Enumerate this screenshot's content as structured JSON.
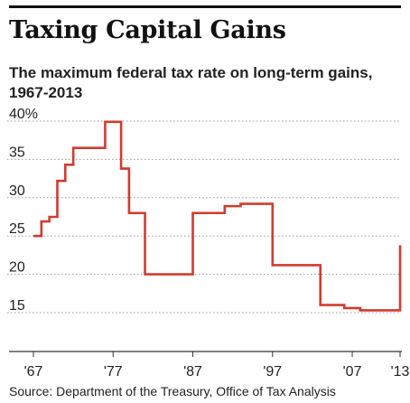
{
  "title": "Taxing Capital Gains",
  "subtitle": "The maximum federal tax rate on long-term gains, 1967-2013",
  "source": "Source: Department of the Treasury, Office of Tax Analysis",
  "colors": {
    "line": "#d13b30",
    "grid": "#9a9a9a",
    "text": "#222222",
    "rule": "#111111"
  },
  "chart_data": {
    "type": "line",
    "step": true,
    "xlim": [
      1967,
      2013
    ],
    "ylim": [
      15,
      40
    ],
    "grid": true,
    "y_ticks": [
      {
        "value": 40,
        "label": "40%"
      },
      {
        "value": 35,
        "label": "35"
      },
      {
        "value": 30,
        "label": "30"
      },
      {
        "value": 25,
        "label": "25"
      },
      {
        "value": 20,
        "label": "20"
      },
      {
        "value": 15,
        "label": "15"
      }
    ],
    "x_ticks": [
      {
        "value": 1967,
        "label": "'67"
      },
      {
        "value": 1977,
        "label": "'77"
      },
      {
        "value": 1987,
        "label": "'87"
      },
      {
        "value": 1997,
        "label": "'97"
      },
      {
        "value": 2007,
        "label": "'07"
      },
      {
        "value": 2013,
        "label": "'13"
      }
    ],
    "series": [
      {
        "x": [
          1967,
          1968,
          1969,
          1970,
          1971,
          1972,
          1976,
          1978,
          1979,
          1981,
          1987,
          1991,
          1993,
          1997,
          2003,
          2006,
          2008,
          2013
        ],
        "y": [
          25,
          26.9,
          27.5,
          32.2,
          34.3,
          36.5,
          39.9,
          33.8,
          28,
          20,
          28,
          28.9,
          29.2,
          21.2,
          16,
          15.6,
          15.3,
          23.8
        ]
      }
    ]
  }
}
